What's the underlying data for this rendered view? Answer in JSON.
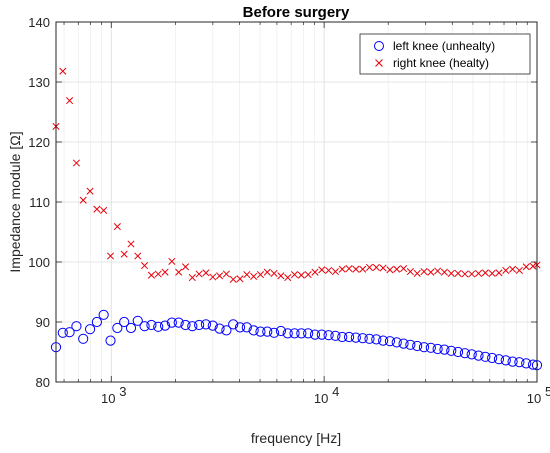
{
  "chart_data": {
    "type": "scatter",
    "title": "Before surgery",
    "xlabel": "frequency [Hz]",
    "ylabel": "Impedance module [Ω]",
    "x_scale": "log",
    "xlim": [
      550,
      100000
    ],
    "ylim": [
      80,
      140
    ],
    "y_ticks": [
      "80",
      "90",
      "100",
      "110",
      "120",
      "130",
      "140"
    ],
    "x_tick_labels": [
      "10",
      "10",
      "10"
    ],
    "x_tick_exponents": [
      "3",
      "4",
      "5"
    ],
    "x_tick_values": [
      1000,
      10000,
      100000
    ],
    "grid": true,
    "minor_grid": true,
    "legend_position": "top-right",
    "series": [
      {
        "name": "left knee (unhealty)",
        "marker": "circle",
        "color": "#0000ff",
        "x": [
          550,
          592,
          637,
          686,
          738,
          795,
          856,
          921,
          992,
          1068,
          1150,
          1238,
          1332,
          1434,
          1544,
          1662,
          1789,
          1926,
          2074,
          2232,
          2403,
          2587,
          2785,
          2998,
          3227,
          3474,
          3740,
          4026,
          4334,
          4665,
          5022,
          5406,
          5820,
          6265,
          6744,
          7260,
          7815,
          8413,
          9057,
          9750,
          10496,
          11299,
          12163,
          13093,
          14095,
          15173,
          16334,
          17583,
          18928,
          20376,
          21934,
          23612,
          25418,
          27362,
          29455,
          31708,
          34133,
          36744,
          39555,
          42580,
          45837,
          49343,
          53117,
          57180,
          61553,
          66261,
          71329,
          76785,
          82658,
          88980,
          95786,
          100000
        ],
        "y": [
          85.8,
          88.2,
          88.3,
          89.3,
          87.2,
          88.8,
          90.0,
          91.2,
          86.9,
          89.0,
          90.0,
          89.0,
          90.2,
          89.3,
          89.5,
          89.2,
          89.4,
          89.9,
          89.9,
          89.5,
          89.3,
          89.5,
          89.6,
          89.4,
          88.9,
          88.6,
          89.6,
          89.1,
          89.1,
          88.6,
          88.4,
          88.4,
          88.2,
          88.5,
          88.1,
          88.1,
          88.1,
          88.1,
          87.9,
          87.9,
          87.8,
          87.7,
          87.5,
          87.5,
          87.4,
          87.3,
          87.2,
          87.1,
          86.9,
          86.8,
          86.6,
          86.4,
          86.2,
          86.0,
          85.8,
          85.7,
          85.5,
          85.4,
          85.2,
          85.0,
          84.8,
          84.6,
          84.4,
          84.2,
          84.0,
          83.8,
          83.6,
          83.4,
          83.3,
          83.1,
          82.9,
          82.8
        ]
      },
      {
        "name": "right knee (healty)",
        "marker": "x",
        "color": "#e8000b",
        "x": [
          550,
          592,
          637,
          686,
          738,
          795,
          856,
          921,
          992,
          1068,
          1150,
          1238,
          1332,
          1434,
          1544,
          1662,
          1789,
          1926,
          2074,
          2232,
          2403,
          2587,
          2785,
          2998,
          3227,
          3474,
          3740,
          4026,
          4334,
          4665,
          5022,
          5406,
          5820,
          6265,
          6744,
          7260,
          7815,
          8413,
          9057,
          9750,
          10496,
          11299,
          12163,
          13093,
          14095,
          15173,
          16334,
          17583,
          18928,
          20376,
          21934,
          23612,
          25418,
          27362,
          29455,
          31708,
          34133,
          36744,
          39555,
          42580,
          45837,
          49343,
          53117,
          57180,
          61553,
          66261,
          71329,
          76785,
          82658,
          88980,
          95786,
          100000
        ],
        "y": [
          122.6,
          131.8,
          126.9,
          116.5,
          110.3,
          111.8,
          108.8,
          108.6,
          101.0,
          105.9,
          101.3,
          103.0,
          101.0,
          99.4,
          97.8,
          98.0,
          98.3,
          100.1,
          98.3,
          99.2,
          97.4,
          98.0,
          98.2,
          97.5,
          97.7,
          98.0,
          97.1,
          97.2,
          97.9,
          97.6,
          97.9,
          98.3,
          98.1,
          97.7,
          97.4,
          97.9,
          97.8,
          97.9,
          98.3,
          98.7,
          98.6,
          98.4,
          98.8,
          98.9,
          98.8,
          98.8,
          99.1,
          99.1,
          99.0,
          98.7,
          98.8,
          98.9,
          98.4,
          98.1,
          98.4,
          98.3,
          98.5,
          98.3,
          98.1,
          98.1,
          98.0,
          98.0,
          98.1,
          98.2,
          98.1,
          98.2,
          98.6,
          98.8,
          98.6,
          99.2,
          99.3,
          99.5
        ]
      }
    ]
  }
}
